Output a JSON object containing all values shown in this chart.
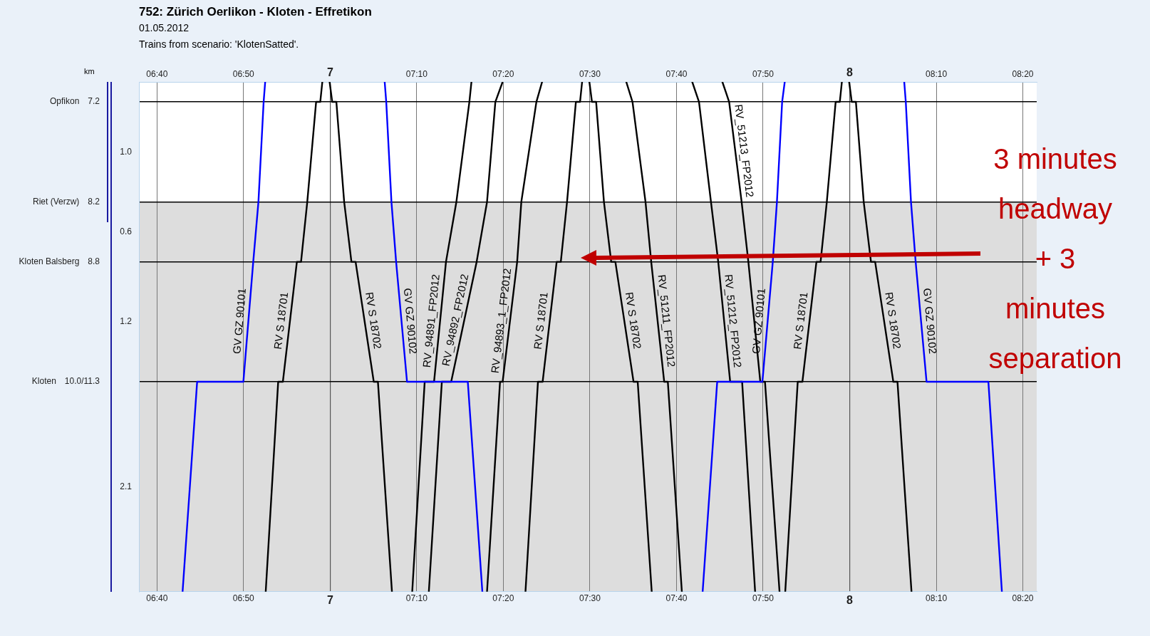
{
  "chart_data": {
    "type": "line",
    "title": "752: Zürich Oerlikon - Kloten - Effretikon",
    "subtitle": "01.05.2012",
    "ylabel": "km",
    "annotations": [
      "Trains from scenario: 'KlotenSatted'.",
      "3 minutes headway + 3 minutes separation",
      "Opfikon",
      "Riet (Verzw)",
      "Kloten Balsberg",
      "Kloten",
      "1.0",
      "0.6",
      "1.2",
      "2.1"
    ],
    "xlim": [
      6.632,
      8.36
    ],
    "xticks": [
      {
        "value": 6.6667,
        "label": "06:40"
      },
      {
        "value": 6.8333,
        "label": "06:50"
      },
      7,
      {
        "value": 7.1667,
        "label": "07:10"
      },
      {
        "value": 7.3333,
        "label": "07:20"
      },
      {
        "value": 7.5,
        "label": "07:30"
      },
      {
        "value": 7.6667,
        "label": "07:40"
      },
      {
        "value": 7.8333,
        "label": "07:50"
      },
      8,
      {
        "value": 8.1667,
        "label": "08:10"
      },
      {
        "value": 8.3333,
        "label": "08:20"
      }
    ],
    "x2lim": [
      6.632,
      8.36
    ],
    "x2ticks": [
      {
        "value": 6.6667,
        "label": "06:40"
      },
      {
        "value": 6.8333,
        "label": "06:50"
      },
      7,
      {
        "value": 7.1667,
        "label": "07:10"
      },
      {
        "value": 7.3333,
        "label": "07:20"
      },
      {
        "value": 7.5,
        "label": "07:30"
      },
      {
        "value": 7.6667,
        "label": "07:40"
      },
      {
        "value": 7.8333,
        "label": "07:50"
      },
      8,
      {
        "value": 8.1667,
        "label": "08:10"
      },
      {
        "value": 8.3333,
        "label": "08:20"
      }
    ],
    "ylim": [
      12.1,
      7.0
    ],
    "yticks": [
      7.2,
      8.2,
      8.8,
      {
        "value": 10,
        "label": "10.0/11.3"
      }
    ],
    "grid": true,
    "bands": [
      {
        "axis": "y",
        "from": 8.2,
        "to": 12.1,
        "color": "#dddddd"
      }
    ],
    "series": [
      {
        "name": "GV GZ 90101",
        "color": "#0000ff",
        "x": [
          6.716,
          6.744,
          6.833,
          6.852,
          6.862,
          6.872,
          6.875
        ],
        "values": [
          12.1,
          10,
          10,
          8.8,
          8.2,
          7.2,
          7.0
        ]
      },
      {
        "name": "GV GZ 90102",
        "color": "#0000ff",
        "x": [
          7.105,
          7.108,
          7.118,
          7.127,
          7.148,
          7.265,
          7.293
        ],
        "values": [
          7.0,
          7.2,
          8.2,
          8.8,
          10,
          10,
          12.1
        ]
      },
      {
        "name": "GV GZ 90101",
        "color": "#0000ff",
        "x": [
          7.717,
          7.745,
          7.832,
          7.852,
          7.86,
          7.87,
          7.875
        ],
        "values": [
          12.1,
          10,
          10,
          8.8,
          8.2,
          7.2,
          7.0
        ]
      },
      {
        "name": "GV GZ 90102",
        "color": "#0000ff",
        "x": [
          8.105,
          8.108,
          8.118,
          8.127,
          8.148,
          8.267,
          8.293
        ],
        "values": [
          7.0,
          7.2,
          8.2,
          8.8,
          10,
          10,
          12.1
        ]
      },
      {
        "name": "RV S 18701",
        "color": "#000000",
        "x": [
          6.876,
          6.9,
          6.909,
          6.936,
          6.944,
          6.956,
          6.973,
          6.981,
          6.985
        ],
        "values": [
          12.1,
          10,
          10,
          8.8,
          8.8,
          8.2,
          7.2,
          7.2,
          7.0
        ]
      },
      {
        "name": "RV S 18702",
        "color": "#000000",
        "x": [
          6.999,
          7.004,
          7.012,
          7.027,
          7.041,
          7.049,
          7.084,
          7.092,
          7.119
        ],
        "values": [
          7.0,
          7.2,
          7.2,
          8.2,
          8.8,
          8.8,
          10,
          10,
          12.1
        ]
      },
      {
        "name": "RV S 18701",
        "color": "#000000",
        "x": [
          7.376,
          7.4,
          7.409,
          7.436,
          7.444,
          7.456,
          7.473,
          7.481,
          7.485
        ],
        "values": [
          12.1,
          10,
          10,
          8.8,
          8.8,
          8.2,
          7.2,
          7.2,
          7.0
        ]
      },
      {
        "name": "RV S 18702",
        "color": "#000000",
        "x": [
          7.499,
          7.504,
          7.512,
          7.527,
          7.541,
          7.549,
          7.584,
          7.592,
          7.619
        ],
        "values": [
          7.0,
          7.2,
          7.2,
          8.2,
          8.8,
          8.8,
          10,
          10,
          12.1
        ]
      },
      {
        "name": "RV S 18701",
        "color": "#000000",
        "x": [
          7.876,
          7.9,
          7.909,
          7.936,
          7.944,
          7.956,
          7.973,
          7.981,
          7.985
        ],
        "values": [
          12.1,
          10,
          10,
          8.8,
          8.8,
          8.2,
          7.2,
          7.2,
          7.0
        ]
      },
      {
        "name": "RV S 18702",
        "color": "#000000",
        "x": [
          7.999,
          8.004,
          8.012,
          8.027,
          8.041,
          8.049,
          8.084,
          8.092,
          8.119
        ],
        "values": [
          7.0,
          7.2,
          7.2,
          8.2,
          8.8,
          8.8,
          10,
          10,
          12.1
        ]
      },
      {
        "name": "RV_94891_FP2012",
        "color": "#000000",
        "x": [
          7.158,
          7.182,
          7.2,
          7.223,
          7.243,
          7.268,
          7.272
        ],
        "values": [
          12.1,
          10,
          10,
          8.8,
          8.2,
          7.2,
          7.0
        ]
      },
      {
        "name": "RV_94892_FP2012",
        "color": "#000000",
        "x": [
          7.19,
          7.215,
          7.233,
          7.282,
          7.302,
          7.318,
          7.332
        ],
        "values": [
          12.1,
          10,
          10,
          8.8,
          8.2,
          7.2,
          7.0
        ]
      },
      {
        "name": "RV_94893_1_FP2012",
        "color": "#000000",
        "x": [
          7.302,
          7.327,
          7.332,
          7.36,
          7.368,
          7.397,
          7.408
        ],
        "values": [
          12.1,
          10,
          10,
          8.8,
          8.2,
          7.2,
          7.0
        ]
      },
      {
        "name": "RV_51211_FP2012",
        "color": "#000000",
        "x": [
          7.57,
          7.582,
          7.607,
          7.618,
          7.643,
          7.65,
          7.677
        ],
        "values": [
          7.0,
          7.2,
          8.2,
          8.8,
          10,
          10,
          12.1
        ]
      },
      {
        "name": "RV_51212_FP2012",
        "color": "#000000",
        "x": [
          7.697,
          7.71,
          7.733,
          7.747,
          7.77,
          7.793,
          7.818
        ],
        "values": [
          7.0,
          7.2,
          8.2,
          8.8,
          10,
          10,
          12.1
        ]
      },
      {
        "name": "RV_51213_FP2012",
        "color": "#000000",
        "x": [
          7.755,
          7.768,
          7.792,
          7.805,
          7.828,
          7.837,
          7.865
        ],
        "values": [
          7.0,
          7.2,
          8.2,
          8.8,
          10,
          10,
          12.1
        ]
      }
    ]
  }
}
